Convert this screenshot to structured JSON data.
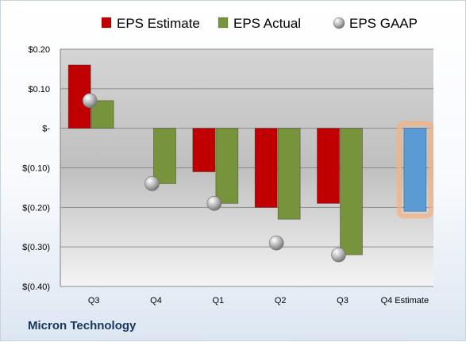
{
  "chart_data": {
    "type": "bar",
    "categories": [
      "Q3",
      "Q4",
      "Q1",
      "Q2",
      "Q3",
      "Q4 Estimate"
    ],
    "series": [
      {
        "name": "EPS Estimate",
        "type": "bar",
        "color": "#c00000",
        "values": [
          0.16,
          null,
          -0.11,
          -0.2,
          -0.19,
          null
        ]
      },
      {
        "name": "EPS Actual",
        "type": "bar",
        "color": "#77933c",
        "values": [
          0.07,
          -0.14,
          -0.19,
          -0.23,
          -0.32,
          null
        ]
      },
      {
        "name": "EPS GAAP",
        "type": "scatter",
        "color": "#a6a6a6",
        "values": [
          0.07,
          -0.14,
          -0.19,
          -0.29,
          -0.32,
          null
        ]
      }
    ],
    "estimate": {
      "category": "Q4 Estimate",
      "value": -0.21,
      "color": "#5b9bd5",
      "highlight": "#f4b183"
    },
    "y_ticks": [
      {
        "value": 0.2,
        "label": "$0.20"
      },
      {
        "value": 0.1,
        "label": "$0.10"
      },
      {
        "value": 0,
        "label": "$-"
      },
      {
        "value": -0.1,
        "label": "$(0.10)"
      },
      {
        "value": -0.2,
        "label": "$(0.20)"
      },
      {
        "value": -0.3,
        "label": "$(0.30)"
      },
      {
        "value": -0.4,
        "label": "$(0.40)"
      }
    ],
    "ylim": [
      -0.4,
      0.2
    ],
    "grid": true,
    "legend": "top"
  },
  "company": "Micron Technology"
}
